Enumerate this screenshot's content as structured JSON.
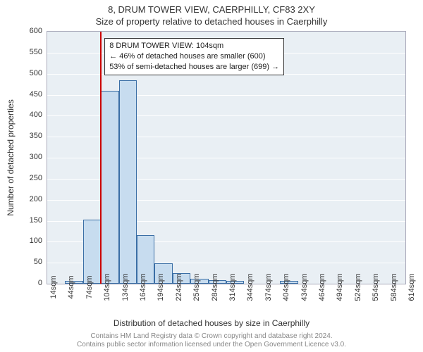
{
  "header": {
    "address": "8, DRUM TOWER VIEW, CAERPHILLY, CF83 2XY",
    "subtitle": "Size of property relative to detached houses in Caerphilly"
  },
  "chart": {
    "type": "histogram",
    "background_color": "#e9eff4",
    "grid_color": "#ffffff",
    "bar_fill": "#c7dcef",
    "bar_border": "#3a6ea5",
    "marker_color": "#cc0000",
    "marker_x": 104,
    "ylim_max": 600,
    "ytick_step": 50,
    "y_ticks": [
      0,
      50,
      100,
      150,
      200,
      250,
      300,
      350,
      400,
      450,
      500,
      550,
      600
    ],
    "x_ticks": [
      14,
      44,
      74,
      104,
      134,
      164,
      194,
      224,
      254,
      284,
      314,
      344,
      374,
      404,
      434,
      464,
      494,
      524,
      554,
      584,
      614
    ],
    "x_tick_unit": "sqm",
    "x_min": 14,
    "x_max": 614,
    "bin_width": 30,
    "bins": [
      {
        "start": 14,
        "count": 0
      },
      {
        "start": 44,
        "count": 6
      },
      {
        "start": 74,
        "count": 152
      },
      {
        "start": 104,
        "count": 459
      },
      {
        "start": 134,
        "count": 485
      },
      {
        "start": 164,
        "count": 115
      },
      {
        "start": 194,
        "count": 48
      },
      {
        "start": 224,
        "count": 25
      },
      {
        "start": 254,
        "count": 12
      },
      {
        "start": 284,
        "count": 8
      },
      {
        "start": 314,
        "count": 7
      },
      {
        "start": 344,
        "count": 0
      },
      {
        "start": 374,
        "count": 0
      },
      {
        "start": 404,
        "count": 6
      },
      {
        "start": 434,
        "count": 0
      },
      {
        "start": 464,
        "count": 0
      },
      {
        "start": 494,
        "count": 0
      },
      {
        "start": 524,
        "count": 0
      },
      {
        "start": 554,
        "count": 0
      },
      {
        "start": 584,
        "count": 0
      }
    ],
    "y_axis_label": "Number of detached properties",
    "x_axis_label": "Distribution of detached houses by size in Caerphilly"
  },
  "info_box": {
    "line1": "8 DRUM TOWER VIEW: 104sqm",
    "line2": "← 46% of detached houses are smaller (600)",
    "line3": "53% of semi-detached houses are larger (699) →"
  },
  "attribution": {
    "line1": "Contains HM Land Registry data © Crown copyright and database right 2024.",
    "line2": "Contains public sector information licensed under the Open Government Licence v3.0."
  },
  "style": {
    "title_fontsize": 13,
    "axis_label_fontsize": 12,
    "tick_fontsize": 11,
    "info_fontsize": 11,
    "attribution_fontsize": 10
  }
}
